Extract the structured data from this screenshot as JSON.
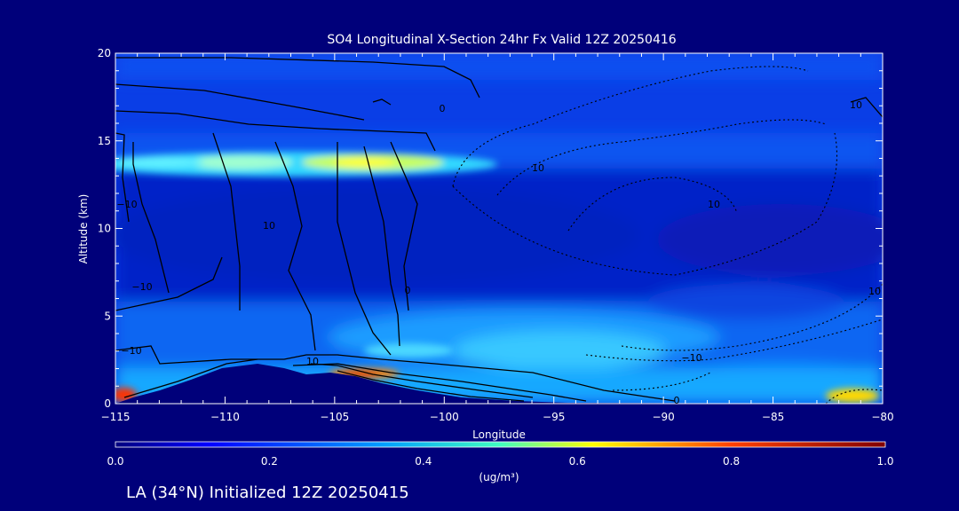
{
  "chart_data": {
    "type": "heatmap",
    "title": "SO4 Longitudinal X-Section 24hr  Fx Valid 12Z 20250416",
    "xlabel": "Longitude",
    "ylabel": "Altitude (km)",
    "xlim": [
      -115,
      -80
    ],
    "ylim": [
      0,
      20
    ],
    "x_ticks": [
      -115,
      -110,
      -105,
      -100,
      -95,
      -90,
      -85,
      -80
    ],
    "x_tick_labels": [
      "−115",
      "−110",
      "−105",
      "−100",
      "−95",
      "−90",
      "−85",
      "−80"
    ],
    "y_ticks": [
      0,
      5,
      10,
      15,
      20
    ],
    "y_tick_labels": [
      "0",
      "5",
      "10",
      "15",
      "20"
    ],
    "colorbar": {
      "range": [
        0.0,
        1.0
      ],
      "ticks": [
        "0.0",
        "0.2",
        "0.4",
        "0.6",
        "0.8",
        "1.0"
      ],
      "units_label": "(ug/m³)"
    },
    "contour_labels": [
      "0",
      "10",
      "10",
      "−10",
      "−10",
      "−10",
      "10",
      "0",
      "−10",
      "10",
      "10",
      "10",
      "0"
    ],
    "features": [
      {
        "lon": -108,
        "alt": 13.6,
        "value": 0.45
      },
      {
        "lon": -103.5,
        "alt": 1.5,
        "value": 0.95
      },
      {
        "lon": -114.5,
        "alt": 0.4,
        "value": 0.9
      },
      {
        "lon": -81,
        "alt": 0.3,
        "value": 0.6
      },
      {
        "lon": -95,
        "alt": 3.5,
        "value": 0.38
      }
    ]
  },
  "footer": {
    "location_label": "LA (34°N) Initialized 12Z 20250415"
  },
  "colors": {
    "background": "#00007a",
    "text": "#ffffff",
    "terrain": "#00007a",
    "contour": "#000000"
  }
}
